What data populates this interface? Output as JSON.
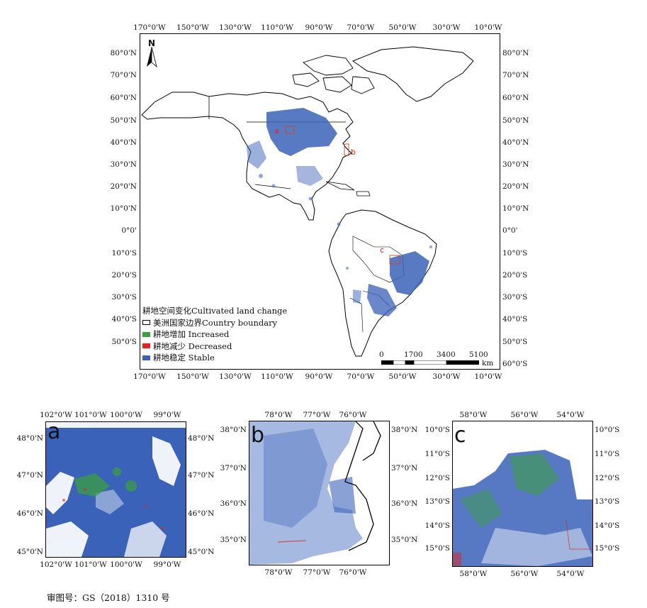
{
  "main_map": {
    "lon_labels": [
      "170°0'W",
      "150°0'W",
      "130°0'W",
      "110°0'W",
      "90°0'W",
      "70°0'W",
      "50°0'W",
      "30°0'W",
      "10°0'W"
    ],
    "lat_labels_left": [
      "80°0'N",
      "70°0'N",
      "60°0'N",
      "50°0'N",
      "40°0'N",
      "30°0'N",
      "20°0'N",
      "10°0'N",
      "0°0'",
      "10°0'S",
      "20°0'S",
      "30°0'S",
      "40°0'S",
      "50°0'S"
    ],
    "lat_labels_right": [
      "80°0'N",
      "70°0'N",
      "60°0'N",
      "50°0'N",
      "40°0'N",
      "30°0'N",
      "20°0'N",
      "10°0'N",
      "0°0'",
      "10°0'S",
      "20°0'S",
      "30°0'S",
      "40°0'S",
      "50°0'S",
      "60°0'S"
    ],
    "north_arrow": "N",
    "region_markers": [
      "a",
      "b",
      "c"
    ],
    "scalebar": {
      "ticks": [
        "0",
        "1700",
        "3400",
        "5100"
      ],
      "unit": "km"
    }
  },
  "legend": {
    "title": "耕地空间变化Cultivated land change",
    "items": [
      {
        "label": "美洲国家边界Country boundary",
        "color": "#ffffff",
        "border": "#000000"
      },
      {
        "label": "耕地增加 Increased",
        "color": "#3aa33a",
        "border": "#3aa33a"
      },
      {
        "label": "耕地减少 Decreased",
        "color": "#e0261b",
        "border": "#e0261b"
      },
      {
        "label": "耕地稳定 Stable",
        "color": "#3a62b8",
        "border": "#3a62b8"
      }
    ]
  },
  "insets": {
    "a": {
      "letter": "a",
      "lon_top": [
        "102°0'W",
        "101°0'W",
        "100°0'W",
        "99°0'W"
      ],
      "lon_bottom": [
        "102°0'W",
        "101°0'W",
        "100°0'W",
        "99°0'W"
      ],
      "lat_left": [
        "48°0'N",
        "47°0'N",
        "46°0'N",
        "45°0'N"
      ],
      "lat_right": [
        "48°0'N",
        "47°0'N",
        "46°0'N",
        "45°0'N"
      ]
    },
    "b": {
      "letter": "b",
      "lon_top": [
        "78°0'W",
        "77°0'W",
        "76°0'W"
      ],
      "lon_bottom": [
        "78°0'W",
        "77°0'W",
        "76°0'W"
      ],
      "lat_left": [
        "38°0'N",
        "37°0'N",
        "36°0'N",
        "35°0'N"
      ],
      "lat_right": [
        "38°0'N",
        "37°0'N",
        "36°0'N",
        "35°0'N"
      ]
    },
    "c": {
      "letter": "c",
      "lon_top": [
        "58°0'W",
        "56°0'W",
        "54°0'W"
      ],
      "lon_bottom": [
        "58°0'W",
        "56°0'W",
        "54°0'W"
      ],
      "lat_left": [
        "10°0'S",
        "11°0'S",
        "12°0'S",
        "13°0'S",
        "14°0'S",
        "15°0'S"
      ],
      "lat_right": [
        "10°0'S",
        "11°0'S",
        "12°0'S",
        "13°0'S",
        "14°0'S",
        "15°0'S"
      ]
    }
  },
  "footer": "审图号：GS（2018）1310 号"
}
